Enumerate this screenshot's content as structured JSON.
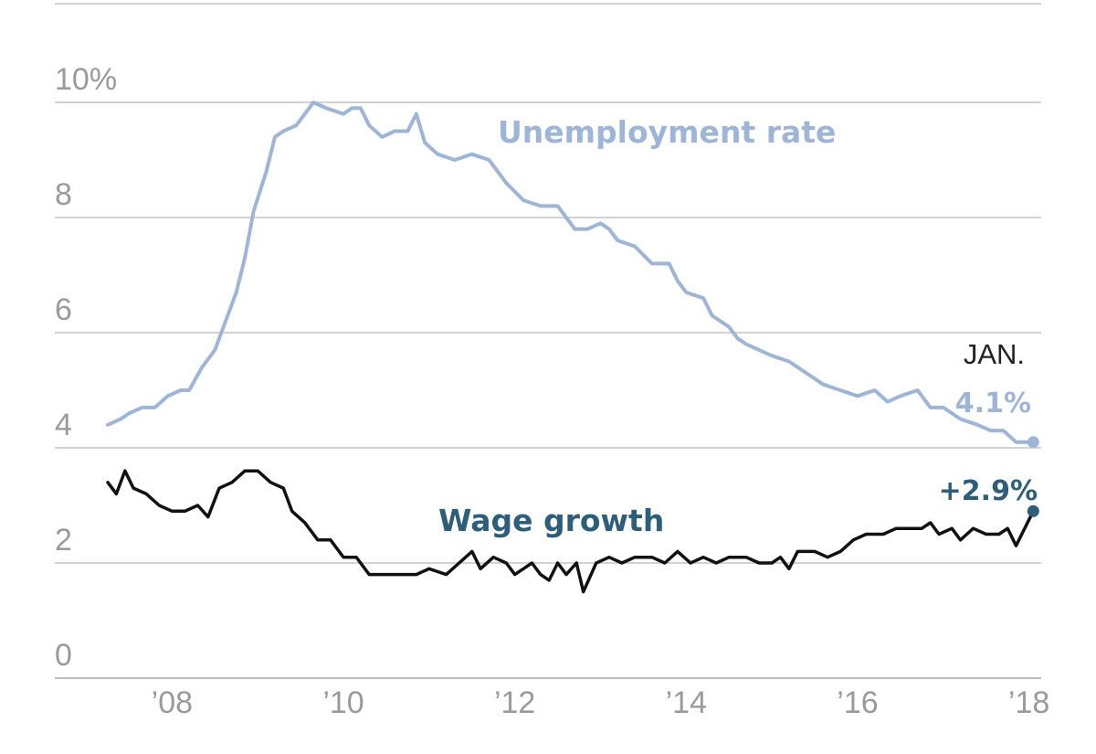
{
  "chart_data": {
    "type": "line",
    "title": "",
    "xlabel": "",
    "ylabel": "",
    "xlim": [
      2007.25,
      2018.1
    ],
    "ylim": [
      0,
      10
    ],
    "grid": true,
    "y_ticks": [
      {
        "value": 10,
        "label": "10%"
      },
      {
        "value": 8,
        "label": "8"
      },
      {
        "value": 6,
        "label": "6"
      },
      {
        "value": 4,
        "label": "4"
      },
      {
        "value": 2,
        "label": "2"
      },
      {
        "value": 0,
        "label": "0"
      }
    ],
    "x_ticks": [
      {
        "value": 2008,
        "label": "’08"
      },
      {
        "value": 2010,
        "label": "’10"
      },
      {
        "value": 2012,
        "label": "’12"
      },
      {
        "value": 2014,
        "label": "’14"
      },
      {
        "value": 2016,
        "label": "’16"
      },
      {
        "value": 2018,
        "label": "’18"
      }
    ],
    "series": [
      {
        "name": "Unemployment rate",
        "color": "#9db5d6",
        "end_value_label": "4.1%",
        "points": [
          [
            2007.25,
            4.4
          ],
          [
            2007.4,
            4.5
          ],
          [
            2007.5,
            4.6
          ],
          [
            2007.65,
            4.7
          ],
          [
            2007.8,
            4.7
          ],
          [
            2007.95,
            4.9
          ],
          [
            2008.1,
            5.0
          ],
          [
            2008.2,
            5.0
          ],
          [
            2008.35,
            5.4
          ],
          [
            2008.5,
            5.7
          ],
          [
            2008.6,
            6.1
          ],
          [
            2008.75,
            6.7
          ],
          [
            2008.85,
            7.3
          ],
          [
            2008.95,
            8.1
          ],
          [
            2009.1,
            8.8
          ],
          [
            2009.2,
            9.4
          ],
          [
            2009.3,
            9.5
          ],
          [
            2009.45,
            9.6
          ],
          [
            2009.55,
            9.8
          ],
          [
            2009.65,
            10.0
          ],
          [
            2009.8,
            9.9
          ],
          [
            2010.0,
            9.8
          ],
          [
            2010.1,
            9.9
          ],
          [
            2010.2,
            9.9
          ],
          [
            2010.3,
            9.6
          ],
          [
            2010.45,
            9.4
          ],
          [
            2010.6,
            9.5
          ],
          [
            2010.75,
            9.5
          ],
          [
            2010.85,
            9.8
          ],
          [
            2010.95,
            9.3
          ],
          [
            2011.1,
            9.1
          ],
          [
            2011.3,
            9.0
          ],
          [
            2011.5,
            9.1
          ],
          [
            2011.7,
            9.0
          ],
          [
            2011.9,
            8.6
          ],
          [
            2012.1,
            8.3
          ],
          [
            2012.3,
            8.2
          ],
          [
            2012.5,
            8.2
          ],
          [
            2012.6,
            8.0
          ],
          [
            2012.7,
            7.8
          ],
          [
            2012.85,
            7.8
          ],
          [
            2013.0,
            7.9
          ],
          [
            2013.1,
            7.8
          ],
          [
            2013.2,
            7.6
          ],
          [
            2013.4,
            7.5
          ],
          [
            2013.6,
            7.2
          ],
          [
            2013.8,
            7.2
          ],
          [
            2013.9,
            6.9
          ],
          [
            2014.0,
            6.7
          ],
          [
            2014.2,
            6.6
          ],
          [
            2014.3,
            6.3
          ],
          [
            2014.5,
            6.1
          ],
          [
            2014.6,
            5.9
          ],
          [
            2014.7,
            5.8
          ],
          [
            2014.85,
            5.7
          ],
          [
            2015.0,
            5.6
          ],
          [
            2015.2,
            5.5
          ],
          [
            2015.4,
            5.3
          ],
          [
            2015.6,
            5.1
          ],
          [
            2015.8,
            5.0
          ],
          [
            2016.0,
            4.9
          ],
          [
            2016.2,
            5.0
          ],
          [
            2016.35,
            4.8
          ],
          [
            2016.5,
            4.9
          ],
          [
            2016.7,
            5.0
          ],
          [
            2016.85,
            4.7
          ],
          [
            2017.0,
            4.7
          ],
          [
            2017.2,
            4.5
          ],
          [
            2017.4,
            4.4
          ],
          [
            2017.55,
            4.3
          ],
          [
            2017.7,
            4.3
          ],
          [
            2017.85,
            4.1
          ],
          [
            2017.95,
            4.1
          ],
          [
            2018.05,
            4.1
          ]
        ]
      },
      {
        "name": "Wage growth",
        "color": "#111111",
        "end_value_label": "+2.9%",
        "points": [
          [
            2007.25,
            3.4
          ],
          [
            2007.35,
            3.2
          ],
          [
            2007.45,
            3.6
          ],
          [
            2007.55,
            3.3
          ],
          [
            2007.7,
            3.2
          ],
          [
            2007.85,
            3.0
          ],
          [
            2008.0,
            2.9
          ],
          [
            2008.15,
            2.9
          ],
          [
            2008.3,
            3.0
          ],
          [
            2008.42,
            2.8
          ],
          [
            2008.55,
            3.3
          ],
          [
            2008.7,
            3.4
          ],
          [
            2008.85,
            3.6
          ],
          [
            2009.0,
            3.6
          ],
          [
            2009.15,
            3.4
          ],
          [
            2009.3,
            3.3
          ],
          [
            2009.4,
            2.9
          ],
          [
            2009.55,
            2.7
          ],
          [
            2009.7,
            2.4
          ],
          [
            2009.85,
            2.4
          ],
          [
            2010.0,
            2.1
          ],
          [
            2010.15,
            2.1
          ],
          [
            2010.3,
            1.8
          ],
          [
            2010.5,
            1.8
          ],
          [
            2010.7,
            1.8
          ],
          [
            2010.85,
            1.8
          ],
          [
            2011.0,
            1.9
          ],
          [
            2011.2,
            1.8
          ],
          [
            2011.35,
            2.0
          ],
          [
            2011.5,
            2.2
          ],
          [
            2011.6,
            1.9
          ],
          [
            2011.75,
            2.1
          ],
          [
            2011.9,
            2.0
          ],
          [
            2012.0,
            1.8
          ],
          [
            2012.1,
            1.9
          ],
          [
            2012.2,
            2.0
          ],
          [
            2012.3,
            1.8
          ],
          [
            2012.4,
            1.7
          ],
          [
            2012.5,
            2.0
          ],
          [
            2012.6,
            1.8
          ],
          [
            2012.72,
            2.0
          ],
          [
            2012.8,
            1.5
          ],
          [
            2012.95,
            2.0
          ],
          [
            2013.1,
            2.1
          ],
          [
            2013.25,
            2.0
          ],
          [
            2013.4,
            2.1
          ],
          [
            2013.6,
            2.1
          ],
          [
            2013.75,
            2.0
          ],
          [
            2013.9,
            2.2
          ],
          [
            2014.05,
            2.0
          ],
          [
            2014.2,
            2.1
          ],
          [
            2014.35,
            2.0
          ],
          [
            2014.5,
            2.1
          ],
          [
            2014.7,
            2.1
          ],
          [
            2014.85,
            2.0
          ],
          [
            2015.0,
            2.0
          ],
          [
            2015.1,
            2.1
          ],
          [
            2015.2,
            1.9
          ],
          [
            2015.3,
            2.2
          ],
          [
            2015.5,
            2.2
          ],
          [
            2015.65,
            2.1
          ],
          [
            2015.8,
            2.2
          ],
          [
            2015.95,
            2.4
          ],
          [
            2016.1,
            2.5
          ],
          [
            2016.3,
            2.5
          ],
          [
            2016.45,
            2.6
          ],
          [
            2016.6,
            2.6
          ],
          [
            2016.75,
            2.6
          ],
          [
            2016.85,
            2.7
          ],
          [
            2016.95,
            2.5
          ],
          [
            2017.1,
            2.6
          ],
          [
            2017.2,
            2.4
          ],
          [
            2017.35,
            2.6
          ],
          [
            2017.5,
            2.5
          ],
          [
            2017.65,
            2.5
          ],
          [
            2017.75,
            2.6
          ],
          [
            2017.85,
            2.3
          ],
          [
            2017.95,
            2.6
          ],
          [
            2018.05,
            2.9
          ]
        ]
      }
    ],
    "annotations": {
      "end_date_label": "JAN."
    }
  }
}
